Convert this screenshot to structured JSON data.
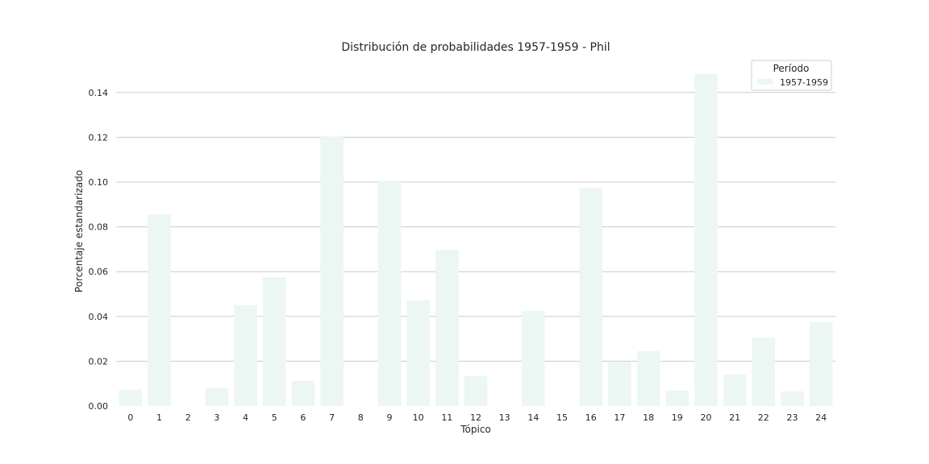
{
  "chart_data": {
    "type": "bar",
    "title": "Distribución de probabilidades 1957-1959 - Phil",
    "xlabel": "Tópico",
    "ylabel": "Porcentaje estandarizado",
    "categories": [
      "0",
      "1",
      "2",
      "3",
      "4",
      "5",
      "6",
      "7",
      "8",
      "9",
      "10",
      "11",
      "12",
      "13",
      "14",
      "15",
      "16",
      "17",
      "18",
      "19",
      "20",
      "21",
      "22",
      "23",
      "24"
    ],
    "series": [
      {
        "name": "1957-1959",
        "values": [
          0.0073,
          0.0855,
          0.0,
          0.0079,
          0.045,
          0.0575,
          0.0112,
          0.1203,
          0.0,
          0.1005,
          0.0471,
          0.0697,
          0.0133,
          0.0,
          0.0425,
          0.0,
          0.0973,
          0.0196,
          0.0245,
          0.0069,
          0.1483,
          0.0141,
          0.0305,
          0.0066,
          0.0374
        ]
      }
    ],
    "ylim": [
      0,
      0.15
    ],
    "yticks": [
      "0.00",
      "0.02",
      "0.04",
      "0.06",
      "0.08",
      "0.10",
      "0.12",
      "0.14"
    ],
    "ytick_values": [
      0,
      0.02,
      0.04,
      0.06,
      0.08,
      0.1,
      0.12,
      0.14
    ],
    "grid": "y",
    "legend": {
      "title": "Período",
      "placement": "top-right"
    },
    "colors": {
      "bar": "#ecf6f2",
      "grid": "#cccccc",
      "text": "#262626"
    }
  }
}
